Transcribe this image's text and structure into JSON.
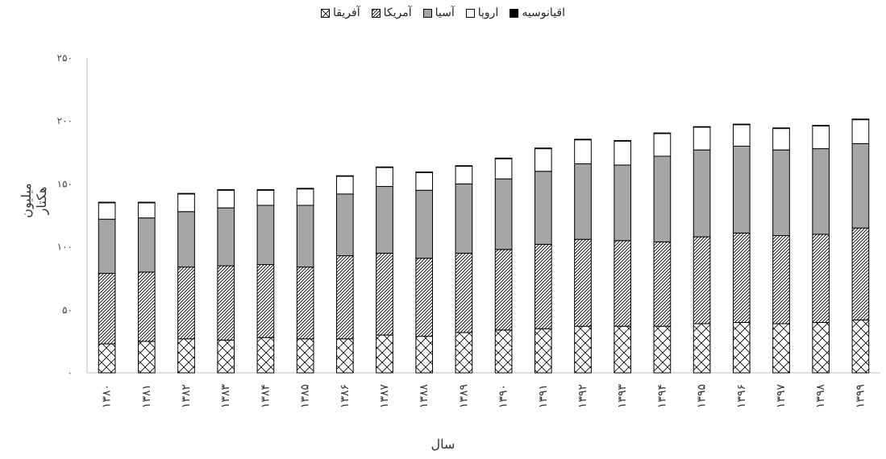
{
  "chart_data": {
    "type": "bar",
    "stacked": true,
    "title": "",
    "xlabel": "سال",
    "ylabel": "میلیون هکتار",
    "ylim": [
      0,
      250
    ],
    "yticks": [
      "۰",
      "۵۰",
      "۱۰۰",
      "۱۵۰",
      "۲۰۰",
      "۲۵۰"
    ],
    "ytick_values": [
      0,
      50,
      100,
      150,
      200,
      250
    ],
    "grid": false,
    "legend_position": "top",
    "categories": [
      "۱۳۸۰",
      "۱۳۸۱",
      "۱۳۸۲",
      "۱۳۸۳",
      "۱۳۸۴",
      "۱۳۸۵",
      "۱۳۸۶",
      "۱۳۸۷",
      "۱۳۸۸",
      "۱۳۸۹",
      "۱۳۹۰",
      "۱۳۹۱",
      "۱۳۹۲",
      "۱۳۹۳",
      "۱۳۹۴",
      "۱۳۹۵",
      "۱۳۹۶",
      "۱۳۹۷",
      "۱۳۹۸",
      "۱۳۹۹"
    ],
    "series": [
      {
        "name": "آفریقا",
        "pattern": "crosshatch",
        "values": [
          23,
          25,
          27,
          26,
          28,
          27,
          27,
          30,
          29,
          32,
          34,
          35,
          37,
          37,
          37,
          39,
          40,
          39,
          40,
          42
        ]
      },
      {
        "name": "آمریکا",
        "pattern": "diagonal",
        "values": [
          56,
          55,
          57,
          59,
          58,
          57,
          66,
          65,
          62,
          63,
          64,
          67,
          69,
          68,
          67,
          69,
          71,
          70,
          70,
          73
        ]
      },
      {
        "name": "آسیا",
        "pattern": "gray",
        "values": [
          43,
          43,
          44,
          46,
          47,
          49,
          49,
          53,
          54,
          55,
          56,
          58,
          60,
          60,
          68,
          69,
          69,
          68,
          68,
          67
        ]
      },
      {
        "name": "اروپا",
        "pattern": "white",
        "values": [
          13,
          12,
          14,
          14,
          12,
          13,
          14,
          15,
          14,
          14,
          16,
          18,
          19,
          19,
          18,
          18,
          17,
          17,
          18,
          19
        ]
      },
      {
        "name": "اقیانوسیه",
        "pattern": "black",
        "values": [
          0.5,
          0.5,
          0.5,
          0.5,
          0.5,
          0.5,
          0.5,
          0.5,
          0.5,
          0.5,
          0.5,
          0.5,
          0.5,
          0.5,
          0.5,
          0.5,
          0.5,
          0.5,
          0.5,
          0.5
        ]
      }
    ],
    "legend_order": [
      "اقیانوسیه",
      "اروپا",
      "آسیا",
      "آمریکا",
      "آفریقا"
    ]
  }
}
